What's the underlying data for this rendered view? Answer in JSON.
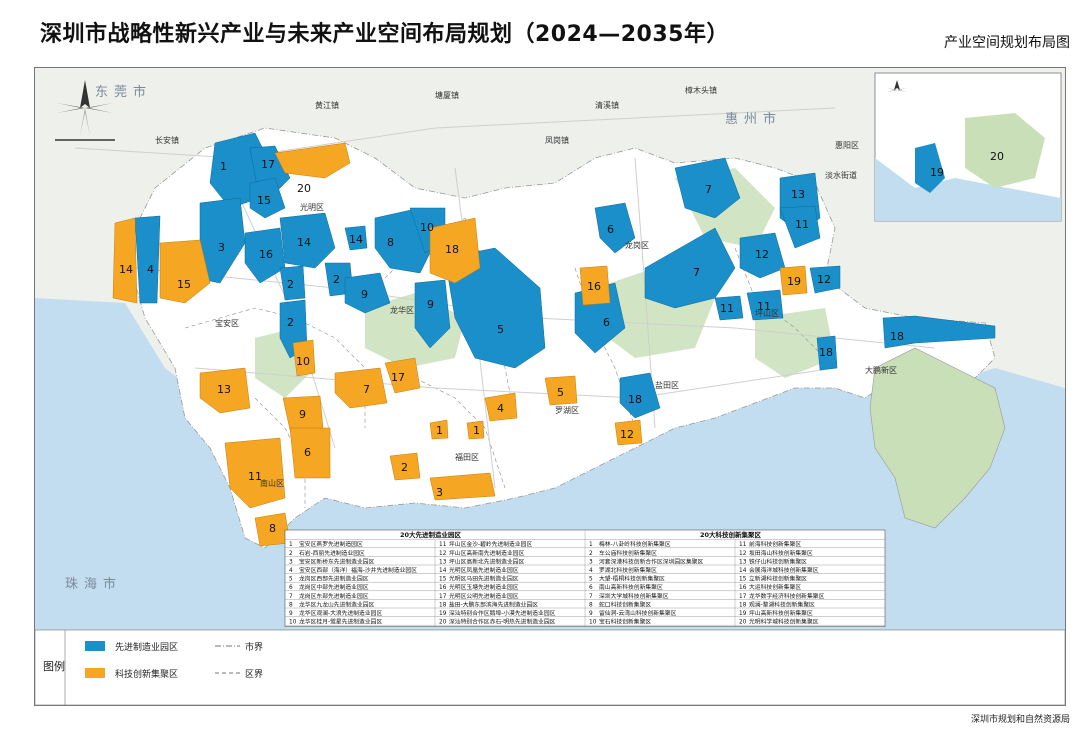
{
  "title": "深圳市战略性新兴产业与未来产业空间布局规划（2024—2035年）",
  "subtitle": "产业空间规划布局图",
  "footer": "深圳市规划和自然资源局",
  "colors": {
    "advanced_manufacturing": "#1a8fc9",
    "tech_innovation": "#f5a623",
    "land": "#ffffff",
    "green": "#c9dfb8",
    "sea": "#c3ddf0",
    "outside": "#eef0ec",
    "road": "#cfcfcf"
  },
  "legend": {
    "heading": "图例",
    "items": [
      {
        "label": "先进制造业园区",
        "color": "#1a8fc9"
      },
      {
        "label": "科技创新集聚区",
        "color": "#f5a623"
      },
      {
        "label": "市界",
        "line": "dash-dot"
      },
      {
        "label": "区界",
        "line": "dash"
      }
    ]
  },
  "district_labels": [
    "宝安区",
    "光明区",
    "龙华区",
    "龙岗区",
    "坪山区",
    "大鹏新区",
    "盐田区",
    "罗湖区",
    "福田区",
    "南山区"
  ],
  "city_labels": [
    "东莞市",
    "惠州市",
    "珠海市"
  ],
  "small_place_labels": [
    "长安镇",
    "凤岗镇",
    "塘厦镇",
    "清溪镇",
    "樟木头镇",
    "黄江镇",
    "惠阳区",
    "淡水街道"
  ],
  "inset_markers": [
    "19",
    "20"
  ],
  "map_markers": [
    {
      "label": "1",
      "type": "adv"
    },
    {
      "label": "17",
      "type": "adv"
    },
    {
      "label": "20",
      "type": "tech"
    },
    {
      "label": "15",
      "type": "adv"
    },
    {
      "label": "3",
      "type": "adv"
    },
    {
      "label": "16",
      "type": "adv"
    },
    {
      "label": "14",
      "type": "adv"
    },
    {
      "label": "14",
      "type": "adv"
    },
    {
      "label": "4",
      "type": "adv"
    },
    {
      "label": "14",
      "type": "tech"
    },
    {
      "label": "15",
      "type": "tech"
    },
    {
      "label": "8",
      "type": "adv"
    },
    {
      "label": "10",
      "type": "adv"
    },
    {
      "label": "2",
      "type": "adv"
    },
    {
      "label": "2",
      "type": "adv"
    },
    {
      "label": "9",
      "type": "adv"
    },
    {
      "label": "9",
      "type": "adv"
    },
    {
      "label": "18",
      "type": "tech"
    },
    {
      "label": "5",
      "type": "adv"
    },
    {
      "label": "2",
      "type": "adv"
    },
    {
      "label": "10",
      "type": "tech"
    },
    {
      "label": "17",
      "type": "tech"
    },
    {
      "label": "7",
      "type": "tech"
    },
    {
      "label": "13",
      "type": "tech"
    },
    {
      "label": "9",
      "type": "tech"
    },
    {
      "label": "6",
      "type": "tech"
    },
    {
      "label": "11",
      "type": "tech"
    },
    {
      "label": "8",
      "type": "tech"
    },
    {
      "label": "1",
      "type": "tech"
    },
    {
      "label": "1",
      "type": "tech"
    },
    {
      "label": "4",
      "type": "tech"
    },
    {
      "label": "2",
      "type": "tech"
    },
    {
      "label": "3",
      "type": "tech"
    },
    {
      "label": "5",
      "type": "tech"
    },
    {
      "label": "16",
      "type": "tech"
    },
    {
      "label": "6",
      "type": "adv"
    },
    {
      "label": "6",
      "type": "adv"
    },
    {
      "label": "7",
      "type": "adv"
    },
    {
      "label": "7",
      "type": "adv"
    },
    {
      "label": "13",
      "type": "adv"
    },
    {
      "label": "11",
      "type": "adv"
    },
    {
      "label": "12",
      "type": "adv"
    },
    {
      "label": "12",
      "type": "adv"
    },
    {
      "label": "19",
      "type": "tech"
    },
    {
      "label": "11",
      "type": "adv"
    },
    {
      "label": "11",
      "type": "adv"
    },
    {
      "label": "18",
      "type": "adv"
    },
    {
      "label": "18",
      "type": "adv"
    },
    {
      "label": "18",
      "type": "adv"
    },
    {
      "label": "12",
      "type": "tech"
    }
  ],
  "table": {
    "left_title": "20大先进制造业园区",
    "right_title": "20大科技创新集聚区",
    "left": [
      "宝安区燕罗先进制造园区",
      "石岩-西丽先进制造业园区",
      "宝安区新桥东先进制造业园区",
      "宝安区西部（海洋）福海-沙井先进制造业园区",
      "龙岗区西部先进制造业园区",
      "龙岗区中部先进制造业园区",
      "龙岗区东部先进制造业园区",
      "龙华区九龙山先进制造业园区",
      "龙华区观澜-大浪先进制造业园区",
      "龙华区桂月-鹭星先进制造业园区"
    ],
    "left2": [
      "坪山区金沙-碧岭先进制造业园区",
      "坪山区高新南先进制造业园区",
      "坪山区高新北先进制造业园区",
      "光明区凤凰先进制造业园区",
      "光明区马田先进制造业园区",
      "光明区玉塘先进制造业园区",
      "光明区公明先进制造业园区",
      "盐田-大鹏东部滨海先进制造业园区",
      "深汕特别合作区鹅埠-小漠先进制造业园区",
      "深汕特别合作区赤石-明热先进制造业园区"
    ],
    "right": [
      "梅林-八卦岭科技创新集聚区",
      "车公庙科技创新集聚区",
      "河套深港科技创新合作区深圳园区集聚区",
      "罗湖北科技创新集聚区",
      "大望-梧桐科技创新集聚区",
      "南山高新科技创新集聚区",
      "深圳大学城科技创新集聚区",
      "蛇口科技创新集聚区",
      "留仙洞-云湾山科技创新集聚区",
      "宝石科技创新集聚区"
    ],
    "right2": [
      "前海科技创新集聚区",
      "坂田海山科技创新集聚区",
      "铁仔山科技创新集聚区",
      "会展海洋城科技创新集聚区",
      "立新湖科技创新集聚区",
      "大运科技创新集聚区",
      "龙华数字经济科技创新集聚区",
      "观澜-黎湖科技创新集聚区",
      "坪山高新科技创新集聚区",
      "光明科学城科技创新集聚区"
    ]
  }
}
